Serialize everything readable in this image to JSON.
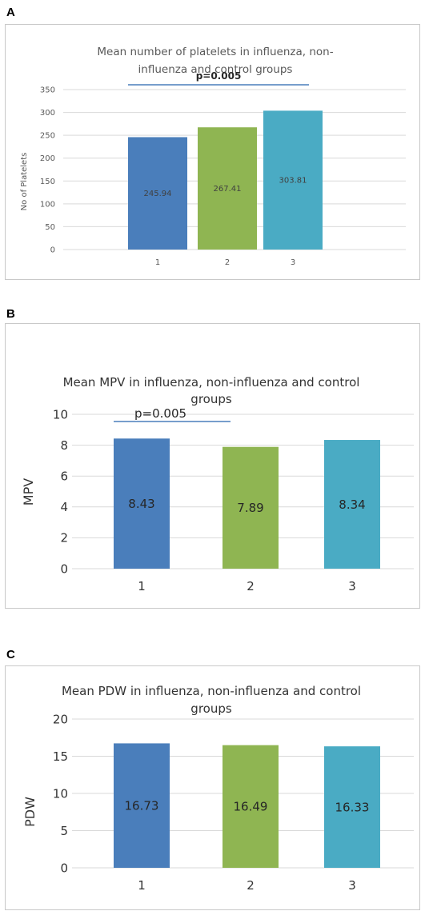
{
  "panels": [
    {
      "letter": "A",
      "title_lines": [
        "Mean number of platelets in influenza, non-",
        "influenza and control groups"
      ],
      "ylabel": "No of Platelets",
      "annotation": "p=0.005",
      "colors": [
        "#4a7ebb",
        "#8fb552",
        "#4aabc4"
      ]
    },
    {
      "letter": "B",
      "title_lines": [
        "Mean MPV in influenza, non-influenza and control",
        "groups"
      ],
      "ylabel": "MPV",
      "annotation": "p=0.005",
      "colors": [
        "#4a7ebb",
        "#8fb552",
        "#4aabc4"
      ]
    },
    {
      "letter": "C",
      "title_lines": [
        "Mean PDW in influenza, non-influenza and control",
        "groups"
      ],
      "ylabel": "PDW",
      "annotation": "",
      "colors": [
        "#4a7ebb",
        "#8fb552",
        "#4aabc4"
      ]
    }
  ],
  "chart_data": [
    {
      "type": "bar",
      "title": "Mean number of platelets in influenza, non-influenza and control groups",
      "categories": [
        "1",
        "2",
        "3"
      ],
      "values": [
        245.94,
        267.41,
        303.81
      ],
      "value_labels": [
        "245.94",
        "267.41",
        "303.81"
      ],
      "ylabel": "No of Platelets",
      "ylim": [
        0,
        350
      ],
      "yticks": [
        "0",
        "50",
        "100",
        "150",
        "200",
        "250",
        "300",
        "350"
      ],
      "grid": true,
      "annotation": {
        "text": "p=0.005",
        "from_category": "1",
        "to_category": "3"
      }
    },
    {
      "type": "bar",
      "title": "Mean MPV in influenza, non-influenza and control groups",
      "categories": [
        "1",
        "2",
        "3"
      ],
      "values": [
        8.43,
        7.89,
        8.34
      ],
      "value_labels": [
        "8.43",
        "7.89",
        "8.34"
      ],
      "ylabel": "MPV",
      "ylim": [
        0,
        10
      ],
      "yticks": [
        "0",
        "2",
        "4",
        "6",
        "8",
        "10"
      ],
      "grid": true,
      "annotation": {
        "text": "p=0.005",
        "from_category": "1",
        "to_category": "2"
      }
    },
    {
      "type": "bar",
      "title": "Mean PDW in influenza, non-influenza and control groups",
      "categories": [
        "1",
        "2",
        "3"
      ],
      "values": [
        16.73,
        16.49,
        16.33
      ],
      "value_labels": [
        "16.73",
        "16.49",
        "16.33"
      ],
      "ylabel": "PDW",
      "ylim": [
        0,
        20
      ],
      "yticks": [
        "0",
        "5",
        "10",
        "15",
        "20"
      ],
      "grid": true
    }
  ]
}
